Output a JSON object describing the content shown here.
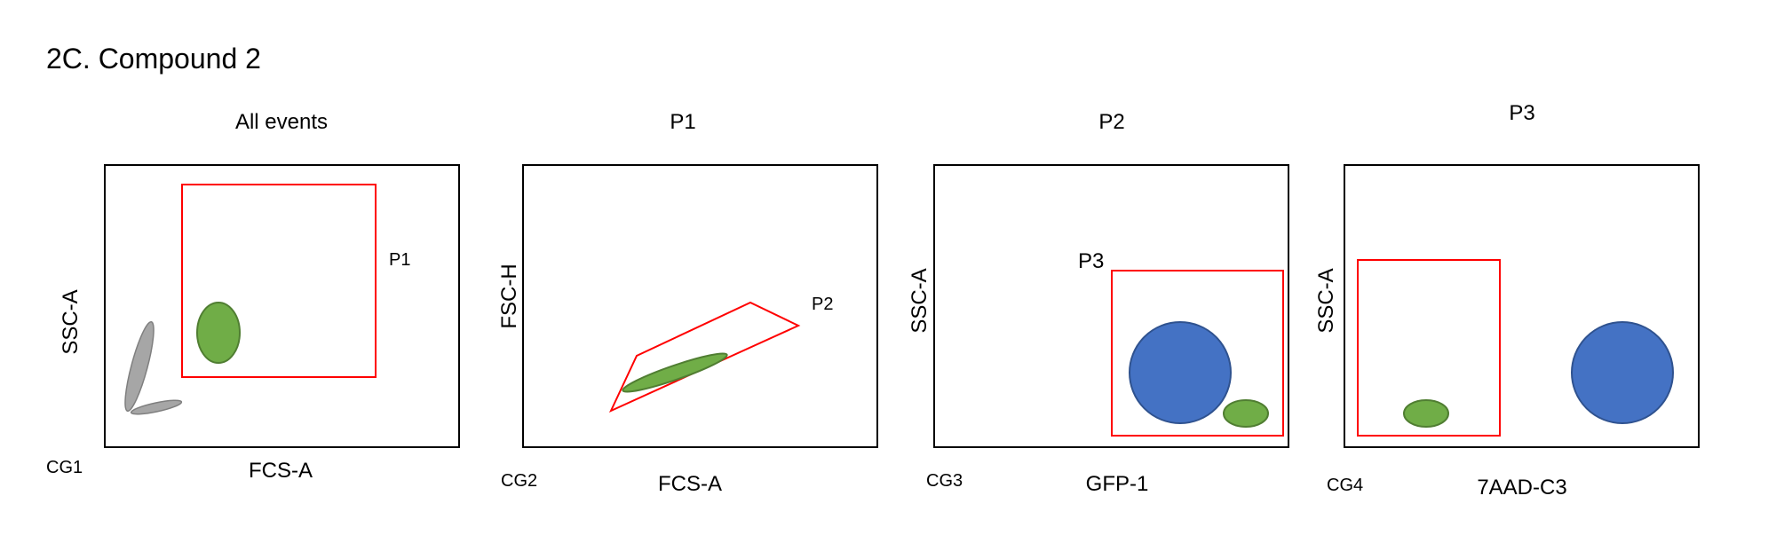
{
  "figure_title": "2C. Compound 2",
  "panels": [
    {
      "title": "All events",
      "x_axis": "FCS-A",
      "y_axis": "SSC-A",
      "corner_label": "CG1",
      "gate_label": "P1"
    },
    {
      "title": "P1",
      "x_axis": "FCS-A",
      "y_axis": "FSC-H",
      "corner_label": "CG2",
      "gate_label": "P2"
    },
    {
      "title": "P2",
      "x_axis": "GFP-1",
      "y_axis": "SSC-A",
      "corner_label": "CG3",
      "gate_label": "P3"
    },
    {
      "title": "P3",
      "x_axis": "7AAD-C3",
      "y_axis": "SSC-A",
      "corner_label": "CG4"
    }
  ],
  "colors": {
    "frame": "#000000",
    "gate": "#ff0000",
    "green_population": "#70ad47",
    "green_outline": "#507e32",
    "blue_population": "#4472c4",
    "blue_outline": "#2f528f",
    "gray_population": "#a6a6a6",
    "gray_outline": "#7f7f7f"
  }
}
